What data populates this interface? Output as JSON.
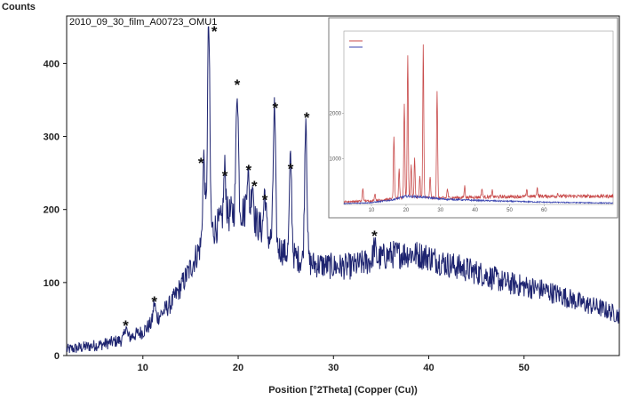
{
  "chart_data": {
    "type": "line",
    "title": "2010_09_30_film_A00723_OMU1",
    "ylabel": "Counts",
    "xlabel": "Position [°2Theta] (Copper (Cu))",
    "xlim": [
      2,
      60
    ],
    "ylim": [
      0,
      465
    ],
    "x_ticks": [
      10,
      20,
      30,
      40,
      50
    ],
    "y_ticks": [
      0,
      100,
      200,
      300,
      400
    ],
    "color": "#1e2470",
    "marker_symbol": "*",
    "series": [
      {
        "baseline": {
          "x": [
            2,
            4,
            6,
            8,
            10,
            11,
            12,
            13,
            14,
            15,
            16,
            17,
            18,
            19,
            20,
            21,
            22,
            23,
            24,
            25,
            26,
            27,
            28,
            30,
            32,
            34,
            36,
            38,
            40,
            42,
            44,
            46,
            48,
            50,
            52,
            54,
            56,
            58,
            60
          ],
          "y": [
            8,
            12,
            16,
            22,
            33,
            45,
            58,
            72,
            95,
            120,
            148,
            168,
            180,
            192,
            200,
            195,
            180,
            165,
            150,
            140,
            135,
            128,
            125,
            122,
            122,
            130,
            138,
            140,
            135,
            125,
            118,
            110,
            100,
            95,
            90,
            82,
            72,
            65,
            55
          ]
        },
        "peaks": [
          {
            "x": 8.2,
            "y": 40
          },
          {
            "x": 11.2,
            "y": 72
          },
          {
            "x": 16.4,
            "y": 270
          },
          {
            "x": 16.9,
            "y": 455
          },
          {
            "x": 18.6,
            "y": 255
          },
          {
            "x": 19.9,
            "y": 370
          },
          {
            "x": 21.0,
            "y": 255
          },
          {
            "x": 21.5,
            "y": 240
          },
          {
            "x": 22.8,
            "y": 225
          },
          {
            "x": 23.8,
            "y": 340
          },
          {
            "x": 25.5,
            "y": 270
          },
          {
            "x": 27.1,
            "y": 330
          },
          {
            "x": 34.3,
            "y": 150
          }
        ]
      }
    ],
    "annotations": [
      {
        "x": 8.2,
        "y": 45,
        "text": "*"
      },
      {
        "x": 11.2,
        "y": 78,
        "text": "*"
      },
      {
        "x": 16.1,
        "y": 268,
        "text": "*"
      },
      {
        "x": 17.5,
        "y": 448,
        "text": "*"
      },
      {
        "x": 18.6,
        "y": 250,
        "text": "*"
      },
      {
        "x": 19.9,
        "y": 375,
        "text": "*"
      },
      {
        "x": 21.1,
        "y": 258,
        "text": "*"
      },
      {
        "x": 21.7,
        "y": 236,
        "text": "*"
      },
      {
        "x": 22.8,
        "y": 217,
        "text": "*"
      },
      {
        "x": 23.9,
        "y": 343,
        "text": "*"
      },
      {
        "x": 25.5,
        "y": 260,
        "text": "*"
      },
      {
        "x": 27.2,
        "y": 330,
        "text": "*"
      },
      {
        "x": 34.3,
        "y": 168,
        "text": "*"
      }
    ],
    "inset": {
      "type": "line",
      "xlim": [
        2,
        80
      ],
      "ylim": [
        0,
        3800
      ],
      "x_ticks": [
        10,
        20,
        30,
        40,
        50,
        60
      ],
      "y_ticks": [
        1000,
        2000
      ],
      "series": [
        {
          "color": "#c84a4a",
          "baseline": {
            "x": [
              2,
              10,
              16,
              20,
              25,
              30,
              40,
              50,
              60,
              70,
              80
            ],
            "y": [
              60,
              80,
              120,
              160,
              150,
              140,
              160,
              170,
              180,
              180,
              180
            ]
          },
          "peaks": [
            {
              "x": 7.5,
              "y": 350
            },
            {
              "x": 11,
              "y": 250
            },
            {
              "x": 16.5,
              "y": 1500
            },
            {
              "x": 18,
              "y": 800
            },
            {
              "x": 19.5,
              "y": 2200
            },
            {
              "x": 20.5,
              "y": 3300
            },
            {
              "x": 21.5,
              "y": 900
            },
            {
              "x": 22.5,
              "y": 1000
            },
            {
              "x": 24,
              "y": 600
            },
            {
              "x": 25,
              "y": 3500
            },
            {
              "x": 27,
              "y": 600
            },
            {
              "x": 29,
              "y": 2500
            },
            {
              "x": 32,
              "y": 350
            },
            {
              "x": 37,
              "y": 400
            },
            {
              "x": 42,
              "y": 350
            },
            {
              "x": 45,
              "y": 300
            },
            {
              "x": 55,
              "y": 300
            },
            {
              "x": 58,
              "y": 380
            },
            {
              "x": 64,
              "y": 250
            }
          ]
        },
        {
          "color": "#3a45b0",
          "baseline": {
            "x": [
              2,
              10,
              16,
              20,
              25,
              30,
              40,
              50,
              60,
              70,
              80
            ],
            "y": [
              20,
              40,
              100,
              180,
              160,
              120,
              90,
              70,
              50,
              40,
              30
            ]
          },
          "peaks": []
        }
      ]
    }
  }
}
